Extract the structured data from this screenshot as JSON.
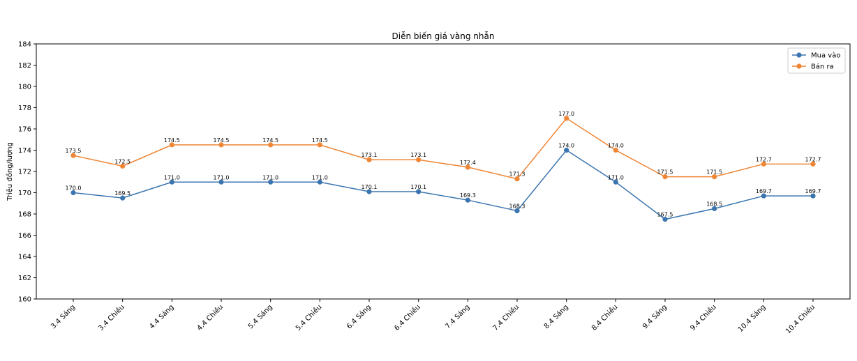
{
  "chart_data": {
    "type": "line",
    "title": "Diễn biến giá vàng nhẫn",
    "xlabel": "",
    "ylabel": "Triệu đồng/lượng",
    "ylim": [
      160,
      184
    ],
    "yticks": [
      160,
      162,
      164,
      166,
      168,
      170,
      172,
      174,
      176,
      178,
      180,
      182,
      184
    ],
    "grid": false,
    "legend_position": "top-right",
    "categories": [
      "3.4 Sáng",
      "3.4 Chiều",
      "4.4 Sáng",
      "4.4 Chiều",
      "5.4 Sáng",
      "5.4 Chiều",
      "6.4 Sáng",
      "6.4 Chiều",
      "7.4 Sáng",
      "7.4 Chiều",
      "8.4 Sáng",
      "8.4 Chiều",
      "9.4 Sáng",
      "9.4 Chiều",
      "10.4 Sáng",
      "10.4 Chiều"
    ],
    "series": [
      {
        "name": "Mua vào",
        "color": "#3b75af",
        "values": [
          170.0,
          169.5,
          171.0,
          171.0,
          171.0,
          171.0,
          170.1,
          170.1,
          169.3,
          168.3,
          174.0,
          171.0,
          167.5,
          168.5,
          169.7,
          169.7
        ],
        "labels": [
          "170.0",
          "169.5",
          "171.0",
          "171.0",
          "171.0",
          "171.0",
          "170.1",
          "170.1",
          "169.3",
          "168.3",
          "174.0",
          "171.0",
          "167.5",
          "168.5",
          "169.7",
          "169.7"
        ]
      },
      {
        "name": "Bán ra",
        "color": "#ef8636",
        "values": [
          173.5,
          172.5,
          174.5,
          174.5,
          174.5,
          174.5,
          173.1,
          173.1,
          172.4,
          171.3,
          177.0,
          174.0,
          171.5,
          171.5,
          172.7,
          172.7
        ],
        "labels": [
          "173.5",
          "172.5",
          "174.5",
          "174.5",
          "174.5",
          "174.5",
          "173.1",
          "173.1",
          "172.4",
          "171.3",
          "177.0",
          "174.0",
          "171.5",
          "171.5",
          "172.7",
          "172.7"
        ]
      }
    ]
  }
}
